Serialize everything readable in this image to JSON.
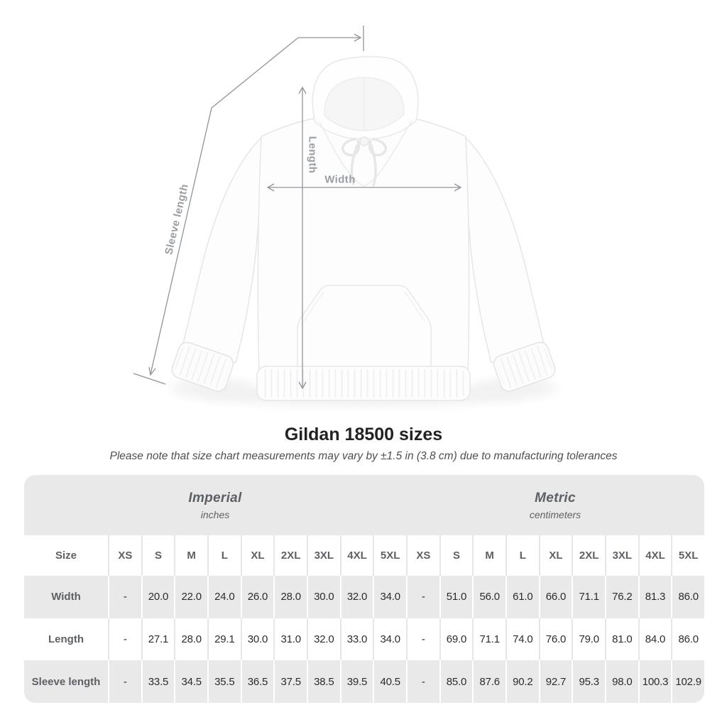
{
  "diagram": {
    "garment": "white pullover hoodie (flat lay photo)",
    "sleeve_length_label": "Sleeve length",
    "length_label": "Length",
    "width_label": "Width"
  },
  "title": "Gildan 18500 sizes",
  "subtitle": "Please note that size chart measurements may vary by ±1.5 in (3.8 cm) due to manufacturing tolerances",
  "table": {
    "size_header": "Size",
    "sections": [
      {
        "label": "Imperial",
        "sublabel": "inches"
      },
      {
        "label": "Metric",
        "sublabel": "centimeters"
      }
    ],
    "columns": [
      "XS",
      "S",
      "M",
      "L",
      "XL",
      "2XL",
      "3XL",
      "4XL",
      "5XL"
    ],
    "rows": [
      {
        "key": "width",
        "label": "Width",
        "imperial": [
          "-",
          "20.0",
          "22.0",
          "24.0",
          "26.0",
          "28.0",
          "30.0",
          "32.0",
          "34.0"
        ],
        "metric": [
          "-",
          "51.0",
          "56.0",
          "61.0",
          "66.0",
          "71.1",
          "76.2",
          "81.3",
          "86.0"
        ]
      },
      {
        "key": "length",
        "label": "Length",
        "imperial": [
          "-",
          "27.1",
          "28.0",
          "29.1",
          "30.0",
          "31.0",
          "32.0",
          "33.0",
          "34.0"
        ],
        "metric": [
          "-",
          "69.0",
          "71.1",
          "74.0",
          "76.0",
          "79.0",
          "81.0",
          "84.0",
          "86.0"
        ]
      },
      {
        "key": "sleeve-length",
        "label": "Sleeve length",
        "imperial": [
          "-",
          "33.5",
          "34.5",
          "35.5",
          "36.5",
          "37.5",
          "38.5",
          "39.5",
          "40.5"
        ],
        "metric": [
          "-",
          "85.0",
          "87.6",
          "90.2",
          "92.7",
          "95.3",
          "98.0",
          "100.3",
          "102.9"
        ]
      }
    ]
  },
  "chart_data": {
    "type": "table",
    "title": "Gildan 18500 sizes",
    "note": "Measurements may vary by ±1.5 in (3.8 cm) due to manufacturing tolerances",
    "unit_groups": [
      {
        "name": "Imperial",
        "unit": "inches"
      },
      {
        "name": "Metric",
        "unit": "centimeters"
      }
    ],
    "sizes": [
      "XS",
      "S",
      "M",
      "L",
      "XL",
      "2XL",
      "3XL",
      "4XL",
      "5XL"
    ],
    "measurements": [
      {
        "label": "Width",
        "imperial": [
          null,
          20.0,
          22.0,
          24.0,
          26.0,
          28.0,
          30.0,
          32.0,
          34.0
        ],
        "metric": [
          null,
          51.0,
          56.0,
          61.0,
          66.0,
          71.1,
          76.2,
          81.3,
          86.0
        ]
      },
      {
        "label": "Length",
        "imperial": [
          null,
          27.1,
          28.0,
          29.1,
          30.0,
          31.0,
          32.0,
          33.0,
          34.0
        ],
        "metric": [
          null,
          69.0,
          71.1,
          74.0,
          76.0,
          79.0,
          81.0,
          84.0,
          86.0
        ]
      },
      {
        "label": "Sleeve length",
        "imperial": [
          null,
          33.5,
          34.5,
          35.5,
          36.5,
          37.5,
          38.5,
          39.5,
          40.5
        ],
        "metric": [
          null,
          85.0,
          87.6,
          90.2,
          92.7,
          95.3,
          98.0,
          100.3,
          102.9
        ]
      }
    ]
  },
  "colors": {
    "row_stripe": "#e9e9e9",
    "separator_on_white": "#e6e6e6",
    "separator_on_gray": "#ffffff",
    "header_text": "#5d6165",
    "value_text": "#2c2c2c",
    "title_text": "#222222",
    "subtitle_text": "#4f4f4f",
    "annotation_line": "#8f949a",
    "annotation_label": "#9a9ea2"
  }
}
